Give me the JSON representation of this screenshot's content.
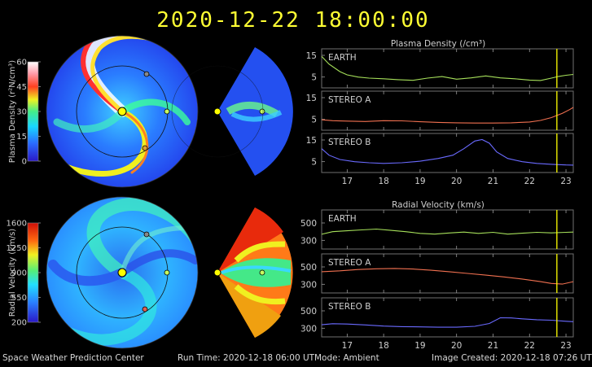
{
  "title": "2020-12-22  18:00:00",
  "footer": {
    "center": "Space Weather Prediction Center",
    "run_time": "Run Time: 2020-12-18 06:00 UT",
    "mode": "Mode: Ambient",
    "image_created": "Image Created: 2020-12-18 07:26 UT"
  },
  "colors": {
    "earth": "#a6e05a",
    "stereo_a": "#f07050",
    "stereo_b": "#6a6aff",
    "time_marker": "#ffff00",
    "panel_border": "#6f6f6f"
  },
  "colorbars": [
    {
      "label": "Plasma Density (r²N/cm³)",
      "ticks": [
        "60",
        "45",
        "30",
        "15",
        "0"
      ]
    },
    {
      "label": "Radial Velocity (km/s)",
      "ticks": [
        "1600",
        "1250",
        "900",
        "550",
        "200"
      ]
    }
  ],
  "chart_data": [
    {
      "type": "line",
      "title": "Plasma Density (/cm³)",
      "x_ticks": [
        "17",
        "18",
        "19",
        "20",
        "21",
        "22",
        "23"
      ],
      "xlim": [
        16.3,
        23.2
      ],
      "time_marker": 22.75,
      "panels": [
        {
          "name": "EARTH",
          "color": "#a6e05a",
          "ylim": [
            0,
            18
          ],
          "y_ticks": [
            15,
            5
          ],
          "x": [
            16.3,
            16.5,
            16.8,
            17.0,
            17.3,
            17.6,
            18.0,
            18.4,
            18.8,
            19.2,
            19.6,
            20.0,
            20.4,
            20.8,
            21.2,
            21.6,
            22.0,
            22.3,
            22.6,
            22.8,
            23.0,
            23.2
          ],
          "y": [
            14.5,
            11,
            7.5,
            6,
            5,
            4.5,
            4.2,
            3.8,
            3.5,
            4.5,
            5.2,
            4.0,
            4.6,
            5.5,
            4.6,
            4.2,
            3.6,
            3.4,
            4.5,
            5.3,
            5.8,
            6.2
          ]
        },
        {
          "name": "STEREO A",
          "color": "#f07050",
          "ylim": [
            0,
            18
          ],
          "y_ticks": [
            15,
            5
          ],
          "x": [
            16.3,
            16.6,
            17.0,
            17.5,
            18.0,
            18.5,
            19.0,
            19.5,
            20.0,
            20.5,
            21.0,
            21.5,
            22.0,
            22.3,
            22.6,
            22.9,
            23.1,
            23.2
          ],
          "y": [
            4.8,
            4.4,
            4.2,
            4.0,
            4.4,
            4.3,
            3.9,
            3.6,
            3.4,
            3.3,
            3.3,
            3.4,
            3.8,
            4.5,
            5.8,
            7.8,
            9.5,
            10.5
          ]
        },
        {
          "name": "STEREO B",
          "color": "#6a6aff",
          "ylim": [
            0,
            18
          ],
          "y_ticks": [
            15,
            5
          ],
          "x": [
            16.3,
            16.5,
            16.8,
            17.2,
            17.6,
            18.0,
            18.5,
            19.0,
            19.5,
            19.9,
            20.2,
            20.5,
            20.7,
            20.9,
            21.1,
            21.4,
            21.8,
            22.2,
            22.6,
            23.0,
            23.2
          ],
          "y": [
            11,
            8,
            6,
            5,
            4.5,
            4.2,
            4.5,
            5.2,
            6.5,
            8.0,
            11.0,
            14.5,
            15.2,
            13.5,
            9.5,
            6.5,
            5.0,
            4.2,
            3.8,
            3.5,
            3.4
          ]
        }
      ]
    },
    {
      "type": "line",
      "title": "Radial Velocity (km/s)",
      "x_ticks": [
        "17",
        "18",
        "19",
        "20",
        "21",
        "22",
        "23"
      ],
      "xlim": [
        16.3,
        23.2
      ],
      "time_marker": 22.75,
      "panels": [
        {
          "name": "EARTH",
          "color": "#a6e05a",
          "ylim": [
            200,
            650
          ],
          "y_ticks": [
            500,
            300
          ],
          "x": [
            16.3,
            16.6,
            17.0,
            17.4,
            17.8,
            18.2,
            18.6,
            19.0,
            19.4,
            19.8,
            20.2,
            20.6,
            21.0,
            21.4,
            21.8,
            22.2,
            22.6,
            23.0,
            23.2
          ],
          "y": [
            370,
            400,
            410,
            420,
            430,
            415,
            400,
            380,
            372,
            385,
            395,
            380,
            392,
            372,
            382,
            392,
            386,
            392,
            395
          ]
        },
        {
          "name": "STEREO A",
          "color": "#f07050",
          "ylim": [
            200,
            650
          ],
          "y_ticks": [
            500,
            300
          ],
          "x": [
            16.3,
            16.8,
            17.3,
            17.8,
            18.3,
            18.8,
            19.3,
            19.8,
            20.3,
            20.8,
            21.3,
            21.8,
            22.3,
            22.6,
            22.9,
            23.2
          ],
          "y": [
            445,
            455,
            470,
            478,
            482,
            476,
            462,
            445,
            425,
            405,
            385,
            360,
            330,
            310,
            302,
            330
          ]
        },
        {
          "name": "STEREO B",
          "color": "#6a6aff",
          "ylim": [
            200,
            650
          ],
          "y_ticks": [
            500,
            300
          ],
          "x": [
            16.3,
            16.6,
            17.0,
            17.5,
            18.0,
            18.5,
            19.0,
            19.5,
            20.0,
            20.5,
            20.9,
            21.2,
            21.5,
            21.8,
            22.2,
            22.6,
            23.0,
            23.2
          ],
          "y": [
            340,
            352,
            348,
            338,
            325,
            318,
            315,
            312,
            312,
            322,
            355,
            420,
            418,
            408,
            398,
            392,
            380,
            375
          ]
        }
      ]
    }
  ]
}
